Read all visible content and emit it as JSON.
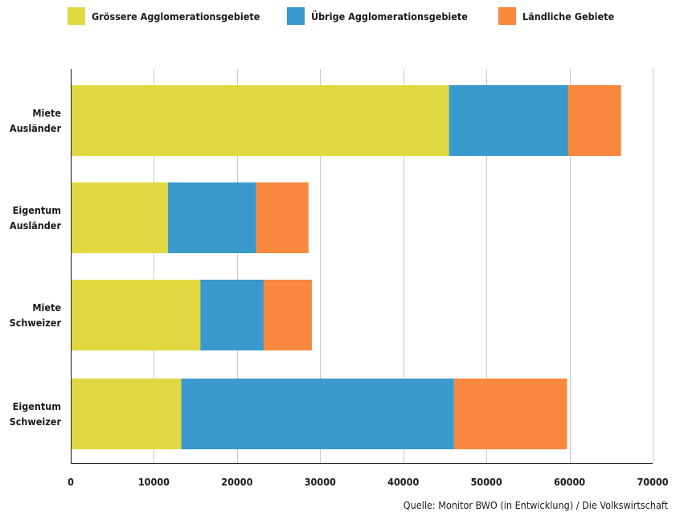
{
  "chart_data": {
    "type": "bar",
    "orientation": "horizontal",
    "stacked": true,
    "categories": [
      [
        "Miete",
        "Ausländer"
      ],
      [
        "Eigentum",
        "Ausländer"
      ],
      [
        "Miete",
        "Schweizer"
      ],
      [
        "Eigentum",
        "Schweizer"
      ]
    ],
    "series": [
      {
        "name": "Grössere Agglomerationsgebiete",
        "color": "#e0d841",
        "values": [
          45500,
          11700,
          15600,
          13300
        ]
      },
      {
        "name": "Übrige Agglomerationsgebiete",
        "color": "#3a99cd",
        "values": [
          14300,
          10600,
          7600,
          32800
        ]
      },
      {
        "name": "Ländliche Gebiete",
        "color": "#f7883e",
        "values": [
          6400,
          6300,
          5800,
          13600
        ]
      }
    ],
    "xlim": [
      0,
      70000
    ],
    "xticks": [
      0,
      10000,
      20000,
      30000,
      40000,
      50000,
      60000,
      70000
    ],
    "xtick_labels": [
      "0",
      "10000",
      "20000",
      "30000",
      "40000",
      "50000",
      "60000",
      "70000"
    ],
    "grid": true,
    "legend_position": "top",
    "source": "Quelle: Monitor BWO (in Entwicklung) / Die Volkswirtschaft"
  }
}
